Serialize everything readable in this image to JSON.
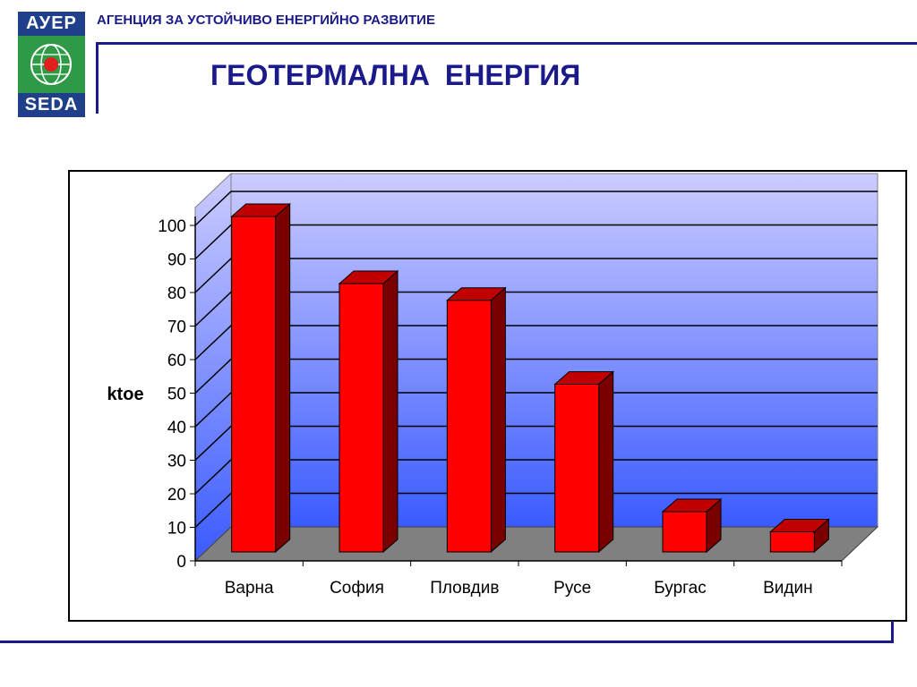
{
  "header": {
    "logo_top": "АУЕР",
    "logo_bottom": "SEDA",
    "agency": "АГЕНЦИЯ ЗА УСТОЙЧИВО ЕНЕРГИЙНО РАЗВИТИЕ",
    "title": "ГЕОТЕРМАЛНА  ЕНЕРГИЯ"
  },
  "colors": {
    "brand_blue": "#1a1a8c",
    "logo_green": "#2e9a45",
    "bar_front": "#ff0000",
    "bar_side": "#7a0000",
    "floor": "#808080",
    "wall_top": "#ccccff",
    "wall_bottom": "#3a5bff"
  },
  "chart_data": {
    "type": "bar",
    "categories": [
      "Варна",
      "София",
      "Пловдив",
      "Русе",
      "Бургас",
      "Видин"
    ],
    "values": [
      100,
      80,
      75,
      50,
      12,
      6
    ],
    "ylabel": "ktoe",
    "ylim": [
      0,
      100
    ],
    "yticks": [
      0,
      10,
      20,
      30,
      40,
      50,
      60,
      70,
      80,
      90,
      100
    ],
    "grid": true,
    "style": "3d-column"
  }
}
